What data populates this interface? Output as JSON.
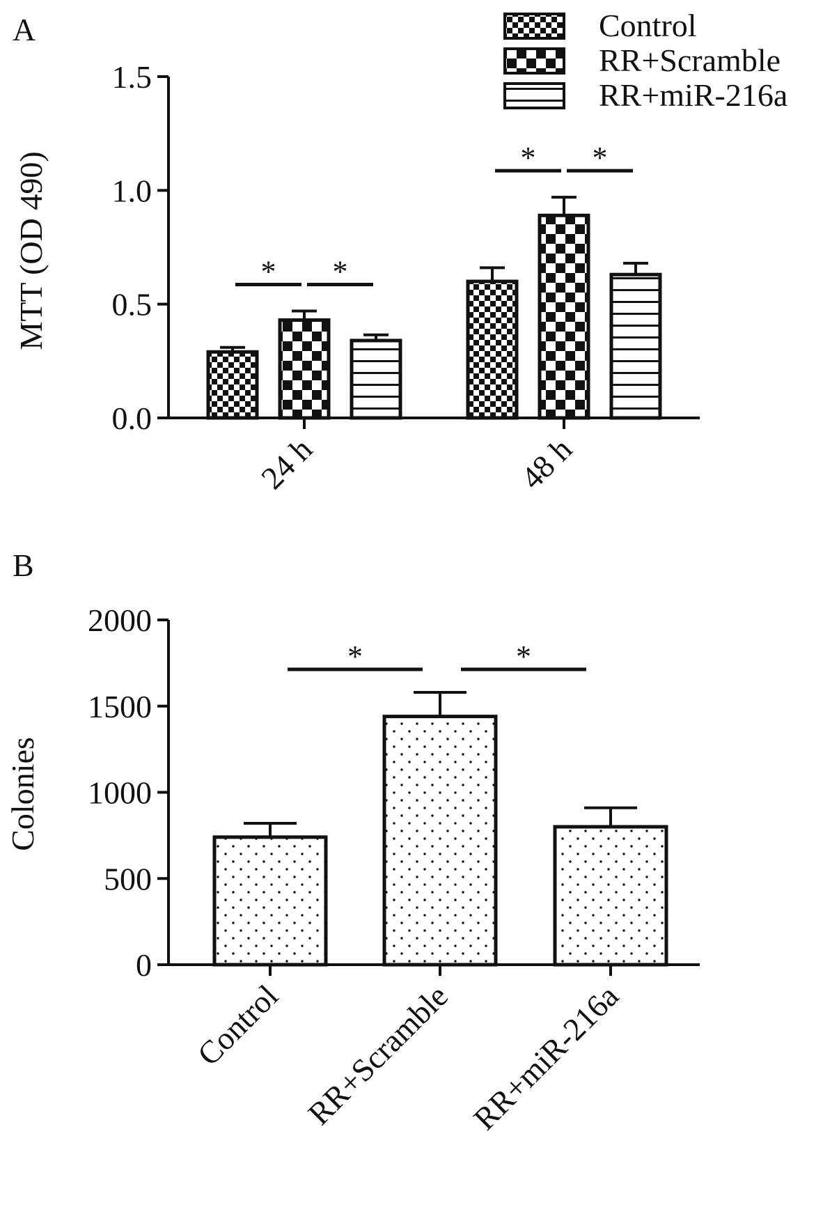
{
  "colors": {
    "ink": "#111111",
    "background": "#ffffff"
  },
  "chart_data": [
    {
      "type": "bar",
      "panel_label": "A",
      "title": "",
      "xlabel": "",
      "ylabel": "MTT (OD 490)",
      "ylim": [
        0,
        1.5
      ],
      "yticks": [
        "0.0",
        "0.5",
        "1.0",
        "1.5"
      ],
      "categories": [
        "24 h",
        "48 h"
      ],
      "legend_position": "top-right",
      "series": [
        {
          "name": "Control",
          "pattern": "checker-fine",
          "values": [
            0.29,
            0.6
          ],
          "errors": [
            0.02,
            0.06
          ]
        },
        {
          "name": "RR+Scramble",
          "pattern": "checker-coarse",
          "values": [
            0.43,
            0.89
          ],
          "errors": [
            0.04,
            0.08
          ]
        },
        {
          "name": "RR+miR-216a",
          "pattern": "horizontal-lines",
          "values": [
            0.34,
            0.63
          ],
          "errors": [
            0.025,
            0.05
          ]
        }
      ],
      "significance": [
        {
          "category": 0,
          "from_series": 0,
          "to_series": 1,
          "label": "*"
        },
        {
          "category": 0,
          "from_series": 1,
          "to_series": 2,
          "label": "*"
        },
        {
          "category": 1,
          "from_series": 0,
          "to_series": 1,
          "label": "*"
        },
        {
          "category": 1,
          "from_series": 1,
          "to_series": 2,
          "label": "*"
        }
      ]
    },
    {
      "type": "bar",
      "panel_label": "B",
      "title": "",
      "xlabel": "",
      "ylabel": "Colonies",
      "ylim": [
        0,
        2000
      ],
      "yticks": [
        "0",
        "500",
        "1000",
        "1500",
        "2000"
      ],
      "categories": [
        "Control",
        "RR+Scramble",
        "RR+miR-216a"
      ],
      "pattern": "dots",
      "values": [
        740,
        1440,
        800
      ],
      "errors": [
        80,
        140,
        110
      ],
      "significance": [
        {
          "from": 0,
          "to": 1,
          "label": "*"
        },
        {
          "from": 1,
          "to": 2,
          "label": "*"
        }
      ]
    }
  ]
}
